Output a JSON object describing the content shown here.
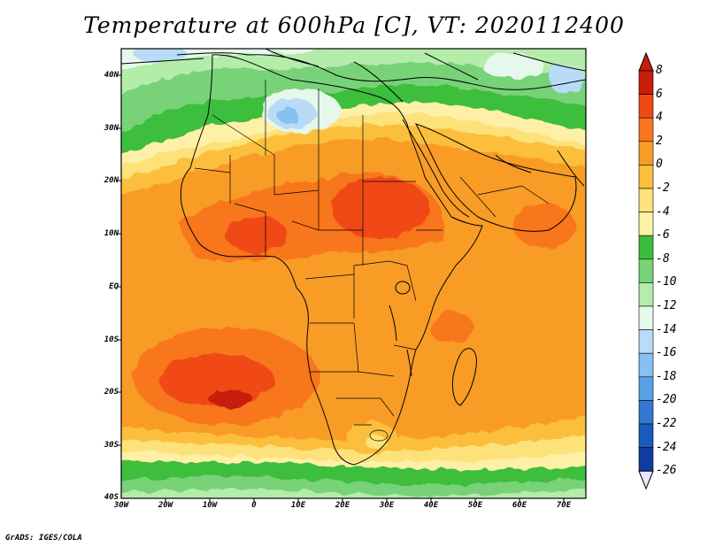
{
  "title": "Temperature at 600hPa [C], VT: 2020112400",
  "credit": "GrADS: IGES/COLA",
  "lat_labels": [
    "40N",
    "30N",
    "20N",
    "10N",
    "EQ",
    "10S",
    "20S",
    "30S",
    "40S"
  ],
  "lon_labels": [
    "30W",
    "20W",
    "10W",
    "0",
    "10E",
    "20E",
    "30E",
    "40E",
    "50E",
    "60E",
    "70E"
  ],
  "colorbar": {
    "labels": [
      "8",
      "6",
      "4",
      "2",
      "0",
      "-2",
      "-4",
      "-6",
      "-8",
      "-10",
      "-12",
      "-14",
      "-16",
      "-18",
      "-20",
      "-22",
      "-24",
      "-26"
    ],
    "colors": [
      "#c81e0a",
      "#f04a12",
      "#f8761e",
      "#f89c26",
      "#fbbf3c",
      "#fde17a",
      "#fff0a8",
      "#3cbe3c",
      "#78d278",
      "#b4ecaa",
      "#e6f8ec",
      "#b8dcf8",
      "#88c0f0",
      "#5aa0e6",
      "#3478d4",
      "#1a5abe",
      "#0f3ca0",
      "#0a1e6e"
    ]
  },
  "map": {
    "lat_range": [
      -40,
      45
    ],
    "lon_range": [
      -30,
      75
    ],
    "field": "Temperature at 600hPa",
    "units": "C",
    "valid_time": "2020112400"
  }
}
